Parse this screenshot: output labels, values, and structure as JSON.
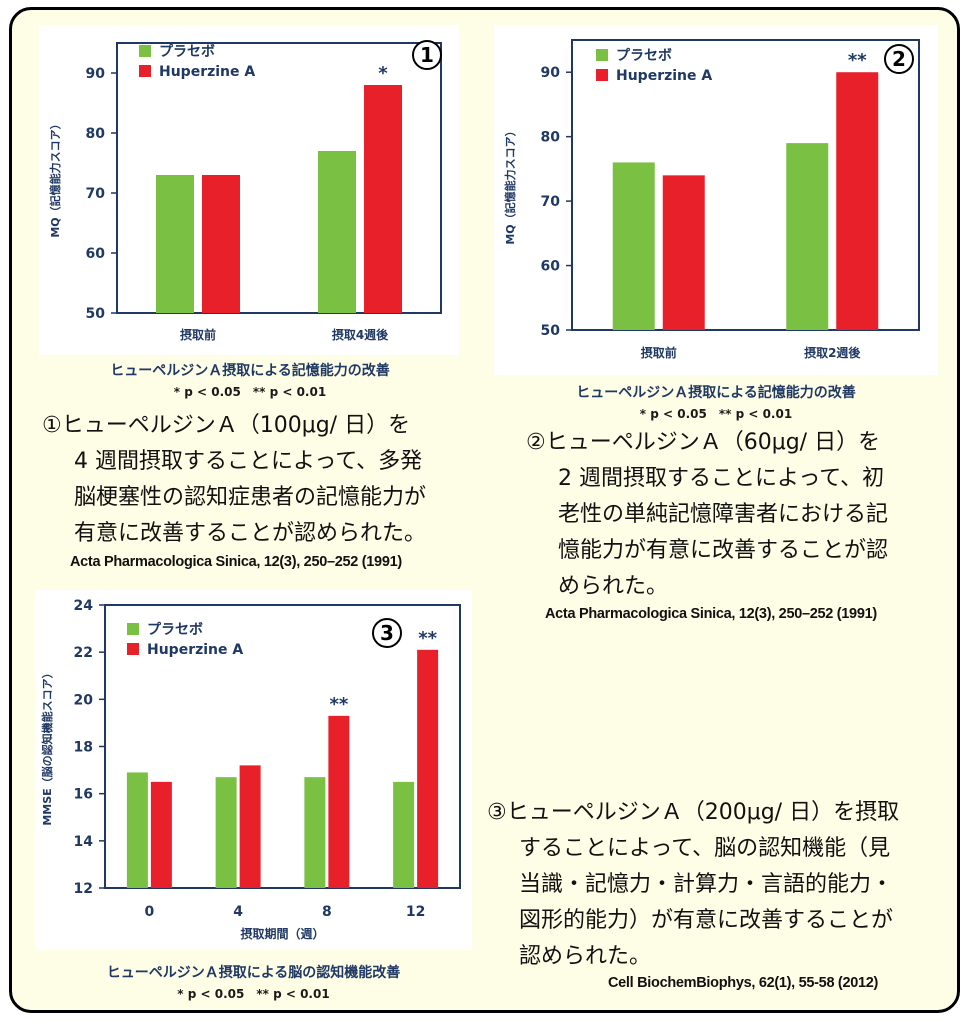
{
  "chart_data": [
    {
      "type": "bar",
      "marker": "①",
      "ylabel": "MQ（記憶能力スコア）",
      "categories": [
        "摂取前",
        "摂取4週後"
      ],
      "ylim": [
        50,
        95
      ],
      "yticks": [
        50,
        60,
        70,
        80,
        90
      ],
      "series": [
        {
          "name": "プラセボ",
          "color": "#7ac143",
          "values": [
            73,
            77
          ]
        },
        {
          "name": "Huperzine A",
          "color": "#e8202a",
          "values": [
            73,
            88
          ]
        }
      ],
      "significance": [
        "",
        "*"
      ],
      "legend": "top-left",
      "caption": "ヒューペルジンＡ摂取による記憶能力の改善",
      "pnote": "* p < 0.05　** p < 0.01"
    },
    {
      "type": "bar",
      "marker": "②",
      "ylabel": "MQ（記憶能力スコア）",
      "categories": [
        "摂取前",
        "摂取2週後"
      ],
      "ylim": [
        50,
        95
      ],
      "yticks": [
        50,
        60,
        70,
        80,
        90
      ],
      "series": [
        {
          "name": "プラセボ",
          "color": "#7ac143",
          "values": [
            76,
            79
          ]
        },
        {
          "name": "Huperzine A",
          "color": "#e8202a",
          "values": [
            74,
            90
          ]
        }
      ],
      "significance": [
        "",
        "**"
      ],
      "legend": "top-left",
      "caption": "ヒューペルジンＡ摂取による記憶能力の改善",
      "pnote": "* p < 0.05　** p < 0.01"
    },
    {
      "type": "bar",
      "marker": "③",
      "ylabel": "MMSE（脳の認知機能スコア）",
      "xlabel": "摂取期間（週）",
      "categories": [
        "0",
        "4",
        "8",
        "12"
      ],
      "ylim": [
        12,
        24
      ],
      "yticks": [
        12,
        14,
        16,
        18,
        20,
        22,
        24
      ],
      "series": [
        {
          "name": "プラセボ",
          "color": "#7ac143",
          "values": [
            16.9,
            16.7,
            16.7,
            16.5
          ]
        },
        {
          "name": "Huperzine A",
          "color": "#e8202a",
          "values": [
            16.5,
            17.2,
            19.3,
            22.1
          ]
        }
      ],
      "significance": [
        "",
        "",
        "**",
        "**"
      ],
      "legend": "top-left",
      "caption": "ヒューペルジンＡ摂取による脳の認知機能改善",
      "pnote": "* p < 0.05　** p < 0.01"
    }
  ],
  "descriptions": [
    {
      "lines": [
        "①ヒューペルジンＡ（100μg/ 日）を",
        "4 週間摂取することによって、多発",
        "脳梗塞性の認知症患者の記憶能力が",
        "有意に改善することが認められた。"
      ],
      "reference": "Acta Pharmacologica Sinica, 12(3), 250–252 (1991)"
    },
    {
      "lines": [
        "②ヒューペルジンＡ（60μg/ 日）を",
        "2 週間摂取することによって、初",
        "老性の単純記憶障害者における記",
        "憶能力が有意に改善することが認",
        "められた。"
      ],
      "reference": "Acta Pharmacologica Sinica, 12(3), 250–252 (1991)"
    },
    {
      "lines": [
        "③ヒューペルジンＡ（200μg/ 日）を摂取",
        "することによって、脳の認知機能（見",
        "当識・記憶力・計算力・言語的能力・",
        "図形的能力）が有意に改善することが",
        "認められた。"
      ],
      "reference": "Cell BiochemBiophys, 62(1), 55-58 (2012)"
    }
  ]
}
